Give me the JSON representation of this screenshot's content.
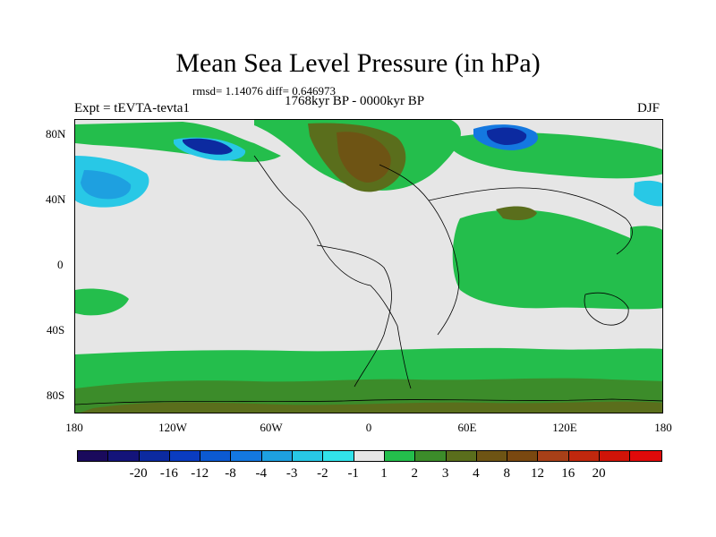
{
  "title": "Mean Sea Level Pressure (in hPa)",
  "stats": "rmsd= 1.14076 diff= 0.646973",
  "period": "1768kyr BP - 0000kyr BP",
  "experiment": "Expt = tEVTA-tevta1",
  "season": "DJF",
  "y_ticks": [
    "80N",
    "40N",
    "0",
    "40S",
    "80S"
  ],
  "x_ticks": [
    "180",
    "120W",
    "60W",
    "0",
    "60E",
    "120E",
    "180"
  ],
  "colorbar": {
    "colors": [
      "#1a0a5c",
      "#14147a",
      "#0c2aa0",
      "#0a3cc0",
      "#0c5ad2",
      "#1478e0",
      "#1ea0e0",
      "#28c8e6",
      "#32e2ea",
      "#e6e6e6",
      "#24be4c",
      "#3c8c2a",
      "#5a6e1c",
      "#6e5414",
      "#7a4810",
      "#a84018",
      "#c0280e",
      "#d01408",
      "#e00a0a"
    ],
    "labels": [
      "-20",
      "-16",
      "-12",
      "-8",
      "-4",
      "-3",
      "-2",
      "-1",
      "1",
      "2",
      "3",
      "4",
      "8",
      "12",
      "16",
      "20"
    ]
  },
  "colors": {
    "background": "#ffffff",
    "neutral": "#e6e6e6",
    "green": "#24be4c",
    "dark_green": "#3c8c2a",
    "olive": "#5a6e1c",
    "brown": "#7a4810",
    "light_blue": "#28c8e6",
    "mid_blue": "#1478e0",
    "dark_blue": "#0c2aa0",
    "coast": "#000000"
  }
}
